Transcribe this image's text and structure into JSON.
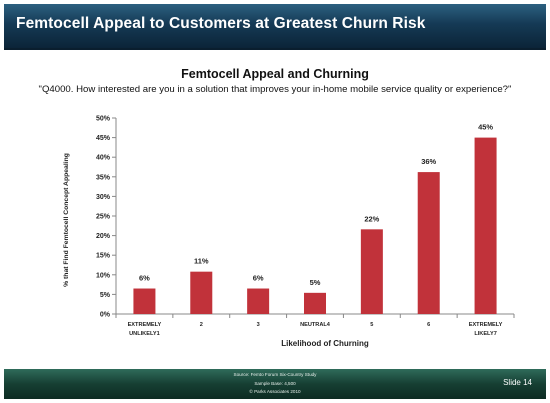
{
  "banner": {
    "title": "Femtocell Appeal to Customers at Greatest Churn Risk"
  },
  "chart_data": {
    "type": "bar",
    "title": "Femtocell Appeal and Churning",
    "subtitle": "\"Q4000. How interested are you in a solution that improves your in-home mobile service quality or experience?\"",
    "xlabel": "Likelihood of Churning",
    "ylabel": "% that Find Femtocell Concept Appealing",
    "categories": [
      [
        "EXTREMELY",
        "UNLIKELY1"
      ],
      [
        "2"
      ],
      [
        "3"
      ],
      [
        "NEUTRAL4"
      ],
      [
        "5"
      ],
      [
        "6"
      ],
      [
        "EXTREMELY",
        "LIKELY7"
      ]
    ],
    "values": [
      6.5,
      10.8,
      6.5,
      5.4,
      21.6,
      36.2,
      45.0
    ],
    "data_labels": [
      "6%",
      "11%",
      "6%",
      "5%",
      "22%",
      "36%",
      "45%"
    ],
    "yticks": [
      "0%",
      "5%",
      "10%",
      "15%",
      "20%",
      "25%",
      "30%",
      "35%",
      "40%",
      "45%",
      "50%"
    ],
    "ylim": [
      0,
      50
    ],
    "grid": false,
    "legend": "none",
    "bar_color": "#c1323a"
  },
  "footer": {
    "lines": [
      "Source: Femto Forum Six-Country Study",
      "Sample Base: 4,500",
      "© Parks Associates 2010"
    ],
    "slide_label": "Slide 14"
  }
}
